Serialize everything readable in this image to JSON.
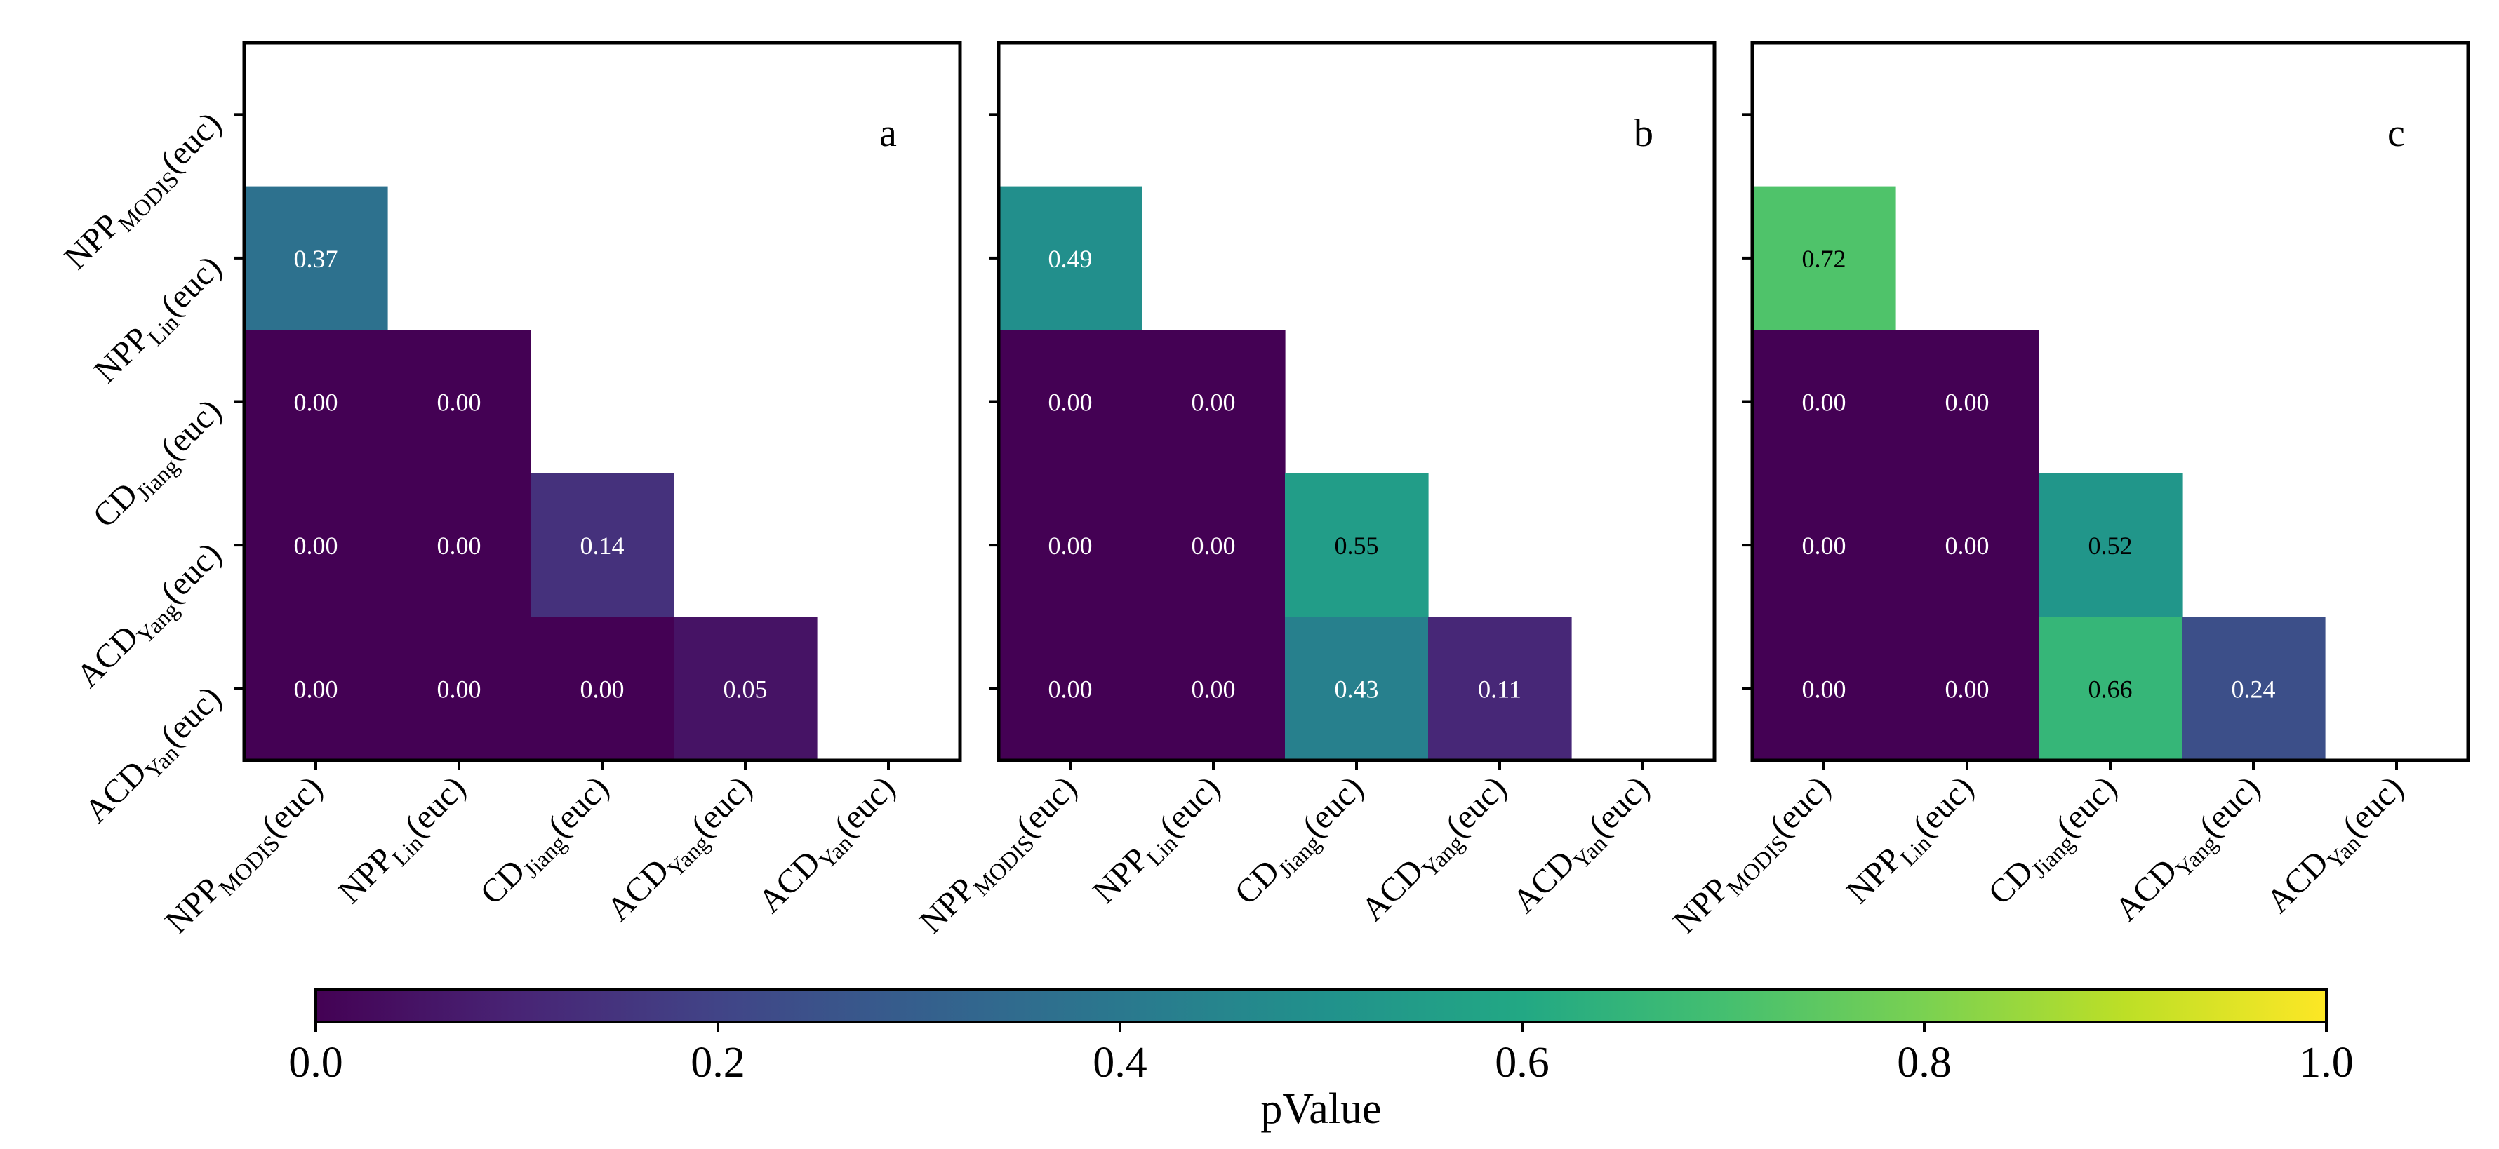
{
  "chart_data": {
    "type": "heatmap",
    "variable": "pValue",
    "colormap": "viridis",
    "row_labels": [
      {
        "base": "NPP",
        "sub": "MODIS",
        "suffix": "(euc)"
      },
      {
        "base": "NPP",
        "sub": "Lin",
        "suffix": "(euc)"
      },
      {
        "base": "CD",
        "sub": "Jiang",
        "suffix": "(euc)"
      },
      {
        "base": "ACD",
        "sub": "Yang",
        "suffix": "(euc)"
      },
      {
        "base": "ACD",
        "sub": "Yan",
        "suffix": "(euc)"
      }
    ],
    "col_labels": [
      {
        "base": "NPP",
        "sub": "MODIS",
        "suffix": "(euc)"
      },
      {
        "base": "NPP",
        "sub": "Lin",
        "suffix": "(euc)"
      },
      {
        "base": "CD",
        "sub": "Jiang",
        "suffix": "(euc)"
      },
      {
        "base": "ACD",
        "sub": "Yang",
        "suffix": "(euc)"
      },
      {
        "base": "ACD",
        "sub": "Yan",
        "suffix": "(euc)"
      }
    ],
    "panels": [
      {
        "label": "a",
        "cells": [
          {
            "row": 1,
            "col": 0,
            "value": 0.37,
            "text": "0.37"
          },
          {
            "row": 2,
            "col": 0,
            "value": 0.0,
            "text": "0.00"
          },
          {
            "row": 2,
            "col": 1,
            "value": 0.0,
            "text": "0.00"
          },
          {
            "row": 3,
            "col": 0,
            "value": 0.0,
            "text": "0.00"
          },
          {
            "row": 3,
            "col": 1,
            "value": 0.0,
            "text": "0.00"
          },
          {
            "row": 3,
            "col": 2,
            "value": 0.14,
            "text": "0.14"
          },
          {
            "row": 4,
            "col": 0,
            "value": 0.0,
            "text": "0.00"
          },
          {
            "row": 4,
            "col": 1,
            "value": 0.0,
            "text": "0.00"
          },
          {
            "row": 4,
            "col": 2,
            "value": 0.0,
            "text": "0.00"
          },
          {
            "row": 4,
            "col": 3,
            "value": 0.05,
            "text": "0.05"
          }
        ]
      },
      {
        "label": "b",
        "cells": [
          {
            "row": 1,
            "col": 0,
            "value": 0.49,
            "text": "0.49"
          },
          {
            "row": 2,
            "col": 0,
            "value": 0.0,
            "text": "0.00"
          },
          {
            "row": 2,
            "col": 1,
            "value": 0.0,
            "text": "0.00"
          },
          {
            "row": 3,
            "col": 0,
            "value": 0.0,
            "text": "0.00"
          },
          {
            "row": 3,
            "col": 1,
            "value": 0.0,
            "text": "0.00"
          },
          {
            "row": 3,
            "col": 2,
            "value": 0.55,
            "text": "0.55"
          },
          {
            "row": 4,
            "col": 0,
            "value": 0.0,
            "text": "0.00"
          },
          {
            "row": 4,
            "col": 1,
            "value": 0.0,
            "text": "0.00"
          },
          {
            "row": 4,
            "col": 2,
            "value": 0.43,
            "text": "0.43"
          },
          {
            "row": 4,
            "col": 3,
            "value": 0.11,
            "text": "0.11"
          }
        ]
      },
      {
        "label": "c",
        "cells": [
          {
            "row": 1,
            "col": 0,
            "value": 0.72,
            "text": "0.72"
          },
          {
            "row": 2,
            "col": 0,
            "value": 0.0,
            "text": "0.00"
          },
          {
            "row": 2,
            "col": 1,
            "value": 0.0,
            "text": "0.00"
          },
          {
            "row": 3,
            "col": 0,
            "value": 0.0,
            "text": "0.00"
          },
          {
            "row": 3,
            "col": 1,
            "value": 0.0,
            "text": "0.00"
          },
          {
            "row": 3,
            "col": 2,
            "value": 0.52,
            "text": "0.52"
          },
          {
            "row": 4,
            "col": 0,
            "value": 0.0,
            "text": "0.00"
          },
          {
            "row": 4,
            "col": 1,
            "value": 0.0,
            "text": "0.00"
          },
          {
            "row": 4,
            "col": 2,
            "value": 0.66,
            "text": "0.66"
          },
          {
            "row": 4,
            "col": 3,
            "value": 0.24,
            "text": "0.24"
          }
        ]
      }
    ],
    "colorbar": {
      "label": "pValue",
      "range": [
        0.0,
        1.0
      ],
      "ticks": [
        0.0,
        0.2,
        0.4,
        0.6,
        0.8,
        1.0
      ],
      "tick_labels": [
        "0.0",
        "0.2",
        "0.4",
        "0.6",
        "0.8",
        "1.0"
      ],
      "orientation": "horizontal",
      "placement": "bottom"
    },
    "text_color_light": "#ffffff",
    "text_color_dark": "#000000"
  }
}
